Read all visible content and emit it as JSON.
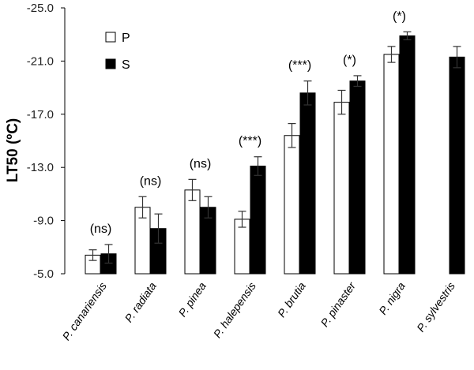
{
  "chart_data": {
    "type": "bar",
    "title": "",
    "xlabel": "",
    "ylabel": "LT50 (ºC)",
    "ylim": [
      -5.0,
      -25.0
    ],
    "yticks": [
      "-25.0",
      "-21.0",
      "-17.0",
      "-13.0",
      "-9.0",
      "-5.0"
    ],
    "ytick_values": [
      -25,
      -21,
      -17,
      -13,
      -9,
      -5
    ],
    "grid": false,
    "legend_position": "top-left",
    "categories": [
      "P. canariensis",
      "P. radiata",
      "P. pinea",
      "P. halepensis",
      "P. brutia",
      "P. pinaster",
      "P. nigra",
      "P. sylvestris"
    ],
    "significance": [
      "(ns)",
      "(ns)",
      "(ns)",
      "(***)",
      "(***)",
      "(*)",
      "(*)",
      ""
    ],
    "series": [
      {
        "name": "P",
        "color": "#ffffff",
        "values": [
          -6.4,
          -10.0,
          -11.3,
          -9.1,
          -15.4,
          -17.9,
          -21.5,
          null
        ],
        "errors": [
          0.4,
          0.8,
          0.8,
          0.6,
          0.9,
          0.9,
          0.6,
          null
        ]
      },
      {
        "name": "S",
        "color": "#000000",
        "values": [
          -6.5,
          -8.4,
          -10.0,
          -13.1,
          -18.6,
          -19.5,
          -22.9,
          -21.3
        ],
        "errors": [
          0.7,
          1.1,
          0.8,
          0.7,
          0.9,
          0.4,
          0.3,
          0.8
        ]
      }
    ]
  }
}
